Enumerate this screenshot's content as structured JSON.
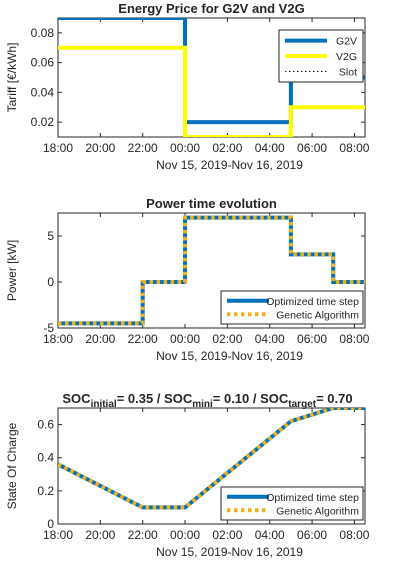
{
  "chart_data": [
    {
      "type": "line",
      "title": "Energy Price for G2V and V2G",
      "ylabel": "Tariff [€/kWh]",
      "xlabel": "Nov 15, 2019-Nov 16, 2019",
      "xlim": [
        18,
        32.5
      ],
      "ylim": [
        0.01,
        0.09
      ],
      "xticks": [
        18,
        20,
        22,
        24,
        26,
        28,
        30,
        32
      ],
      "xtick_labels": [
        "18:00",
        "20:00",
        "22:00",
        "00:00",
        "02:00",
        "04:00",
        "06:00",
        "08:00"
      ],
      "yticks": [
        0.02,
        0.04,
        0.06,
        0.08
      ],
      "ytick_labels": [
        "0.02",
        "0.04",
        "0.06",
        "0.08"
      ],
      "legend_position": "top-right",
      "series": [
        {
          "name": "G2V",
          "color": "#0072BD",
          "style": "solid",
          "x": [
            18,
            24,
            24,
            29,
            29,
            32.5
          ],
          "y": [
            0.09,
            0.09,
            0.02,
            0.02,
            0.05,
            0.05
          ]
        },
        {
          "name": "V2G",
          "color": "#FFFF00",
          "style": "solid",
          "x": [
            18,
            24,
            24,
            29,
            29,
            32.5
          ],
          "y": [
            0.07,
            0.07,
            0.01,
            0.01,
            0.03,
            0.03
          ]
        },
        {
          "name": "Slot",
          "color": "#000000",
          "style": "dotted",
          "x": [],
          "y": []
        }
      ]
    },
    {
      "type": "line",
      "title": "Power time evolution",
      "ylabel": "Power [kW]",
      "xlabel": "Nov 15, 2019-Nov 16, 2019",
      "xlim": [
        18,
        32.5
      ],
      "ylim": [
        -5,
        7.5
      ],
      "xticks": [
        18,
        20,
        22,
        24,
        26,
        28,
        30,
        32
      ],
      "xtick_labels": [
        "18:00",
        "20:00",
        "22:00",
        "00:00",
        "02:00",
        "04:00",
        "06:00",
        "08:00"
      ],
      "yticks": [
        -5,
        0,
        5
      ],
      "ytick_labels": [
        "-5",
        "0",
        "5"
      ],
      "legend_position": "bottom-right",
      "series": [
        {
          "name": "Optimized time step",
          "color": "#0072BD",
          "style": "solid",
          "x": [
            18,
            22,
            22,
            24,
            24,
            29,
            29,
            31,
            31,
            32.5
          ],
          "y": [
            -4.5,
            -4.5,
            0,
            0,
            7,
            7,
            3,
            3,
            0,
            0
          ]
        },
        {
          "name": "Genetic Algorithm",
          "color": "#EDB120",
          "style": "dotted",
          "x": [
            18,
            22,
            22,
            24,
            24,
            29,
            29,
            31,
            31,
            32.5
          ],
          "y": [
            -4.5,
            -4.5,
            0,
            0,
            7,
            7,
            3,
            3,
            0,
            0
          ]
        }
      ]
    },
    {
      "type": "line",
      "title": "SOC_initial = 0.35 / SOC_mini = 0.10 / SOC_target = 0.70",
      "title_parts": [
        {
          "text": "SOC",
          "sub": "initial",
          "rest": "= 0.35 / "
        },
        {
          "text": "SOC",
          "sub": "mini",
          "rest": "= 0.10 / "
        },
        {
          "text": "SOC",
          "sub": "target",
          "rest": "= 0.70"
        }
      ],
      "ylabel": "State Of Charge",
      "xlabel": "Nov 15, 2019-Nov 16, 2019",
      "xlim": [
        18,
        32.5
      ],
      "ylim": [
        0,
        0.7
      ],
      "xticks": [
        18,
        20,
        22,
        24,
        26,
        28,
        30,
        32
      ],
      "xtick_labels": [
        "18:00",
        "20:00",
        "22:00",
        "00:00",
        "02:00",
        "04:00",
        "06:00",
        "08:00"
      ],
      "yticks": [
        0,
        0.2,
        0.4,
        0.6
      ],
      "ytick_labels": [
        "0",
        "0.2",
        "0.4",
        "0.6"
      ],
      "legend_position": "bottom-right",
      "series": [
        {
          "name": "Optimized time step",
          "color": "#0072BD",
          "style": "solid",
          "x": [
            18,
            22,
            24,
            29,
            31,
            32.5
          ],
          "y": [
            0.36,
            0.1,
            0.1,
            0.62,
            0.7,
            0.7
          ]
        },
        {
          "name": "Genetic Algorithm",
          "color": "#EDB120",
          "style": "dotted",
          "x": [
            18,
            22,
            24,
            29,
            31,
            32.5
          ],
          "y": [
            0.36,
            0.1,
            0.1,
            0.62,
            0.7,
            0.7
          ]
        }
      ]
    }
  ]
}
